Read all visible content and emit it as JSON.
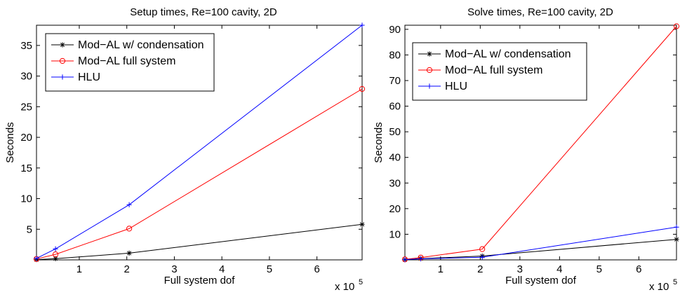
{
  "chart_data": [
    {
      "type": "line",
      "title": "Setup times, Re=100 cavity, 2D",
      "xlabel": "Full system dof",
      "ylabel": "Seconds",
      "x_multiplier_base": "x 10",
      "x_multiplier_exp": "5",
      "xlim": [
        0.1,
        6.95
      ],
      "ylim": [
        0,
        38.3
      ],
      "xticks": [
        1,
        2,
        3,
        4,
        5,
        6
      ],
      "yticks": [
        5,
        10,
        15,
        20,
        25,
        30,
        35
      ],
      "grid": false,
      "legend_position": "top-left",
      "x": [
        0.1,
        0.5,
        2.05,
        6.95
      ],
      "series": [
        {
          "name": "Mod−AL w/ condensation",
          "color": "#000000",
          "marker": "star",
          "values": [
            0.05,
            0.2,
            1.1,
            5.8
          ]
        },
        {
          "name": "Mod−AL full system",
          "color": "#ff0000",
          "marker": "circle",
          "values": [
            0.15,
            0.9,
            5.1,
            27.9
          ]
        },
        {
          "name": "HLU",
          "color": "#0000ff",
          "marker": "plus",
          "values": [
            0.25,
            1.8,
            9.0,
            38.3
          ]
        }
      ]
    },
    {
      "type": "line",
      "title": "Solve times, Re=100 cavity, 2D",
      "xlabel": "Full system dof",
      "ylabel": "Seconds",
      "x_multiplier_base": "x 10",
      "x_multiplier_exp": "5",
      "xlim": [
        0.1,
        6.95
      ],
      "ylim": [
        0,
        91.6
      ],
      "xticks": [
        1,
        2,
        3,
        4,
        5,
        6
      ],
      "yticks": [
        10,
        20,
        30,
        40,
        50,
        60,
        70,
        80,
        90
      ],
      "grid": false,
      "legend_position": "top-left",
      "x": [
        0.1,
        0.5,
        2.05,
        6.95
      ],
      "series": [
        {
          "name": "Mod−AL w/ condensation",
          "color": "#000000",
          "marker": "star",
          "values": [
            0.1,
            0.5,
            1.5,
            8.0
          ]
        },
        {
          "name": "Mod−AL full system",
          "color": "#ff0000",
          "marker": "circle",
          "values": [
            0.2,
            0.9,
            4.2,
            91.2
          ]
        },
        {
          "name": "HLU",
          "color": "#0000ff",
          "marker": "plus",
          "values": [
            0.1,
            0.4,
            1.0,
            12.8
          ]
        }
      ]
    }
  ]
}
